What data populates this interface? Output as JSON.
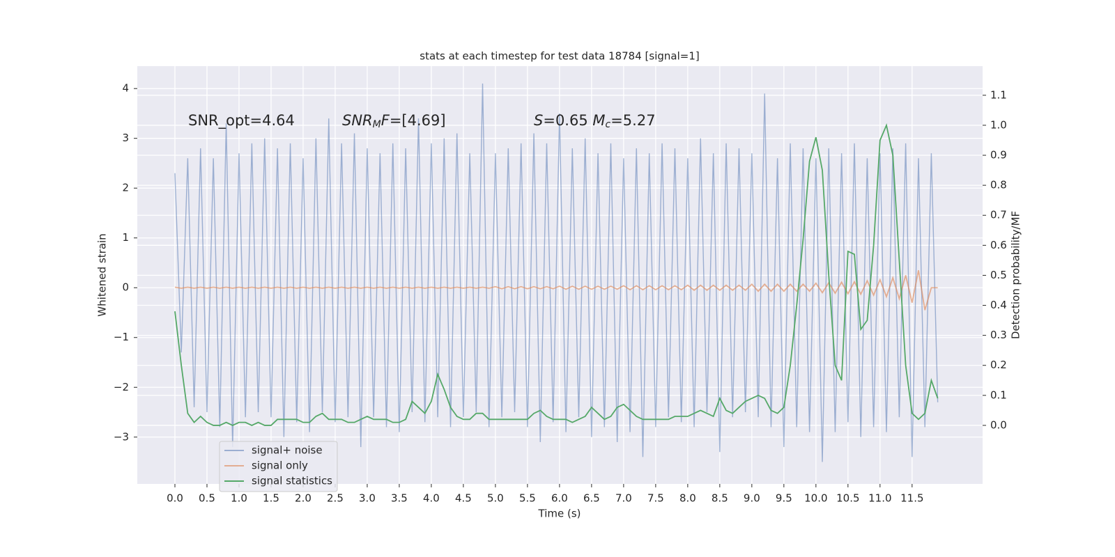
{
  "chart_data": {
    "type": "line",
    "title": "stats at each timestep for test data 18784 [signal=1]",
    "x_label": "Time (s)",
    "y_label": "Whitened strain",
    "y2_label": "Detection probability/MF",
    "annotations": [
      [
        {
          "text": "SNR_opt=4.64"
        }
      ],
      [
        {
          "text": "SNR",
          "italic": true
        },
        {
          "text": "M",
          "italic": true,
          "sub": true
        },
        {
          "text": "F",
          "italic": true
        },
        {
          "text": "=[4.69]"
        }
      ],
      [
        {
          "text": "S",
          "italic": true
        },
        {
          "text": "=0.65   "
        },
        {
          "text": "M",
          "italic": true
        },
        {
          "text": "c",
          "italic": true,
          "sub": true
        },
        {
          "text": "=5.27"
        }
      ]
    ],
    "xlim": [
      -0.587,
      12.6
    ],
    "ylim": [
      -3.94,
      4.45
    ],
    "y2lim": [
      -0.195,
      1.197
    ],
    "xticks": [
      {
        "value": 0,
        "label": "0.0"
      },
      0.5,
      {
        "value": 1,
        "label": "1.0"
      },
      1.5,
      {
        "value": 2,
        "label": "2.0"
      },
      2.5,
      {
        "value": 3,
        "label": "3.0"
      },
      3.5,
      {
        "value": 4,
        "label": "4.0"
      },
      4.5,
      {
        "value": 5,
        "label": "5.0"
      },
      5.5,
      {
        "value": 6,
        "label": "6.0"
      },
      6.5,
      {
        "value": 7,
        "label": "7.0"
      },
      7.5,
      {
        "value": 8,
        "label": "8.0"
      },
      8.5,
      {
        "value": 9,
        "label": "9.0"
      },
      9.5,
      {
        "value": 10,
        "label": "10.0"
      },
      10.5,
      {
        "value": 11,
        "label": "11.0"
      },
      11.5
    ],
    "yticks": [
      {
        "value": -3,
        "label": "−3"
      },
      {
        "value": -2,
        "label": "−2"
      },
      {
        "value": -1,
        "label": "−1"
      },
      0,
      1,
      2,
      3,
      4
    ],
    "y2ticks": [
      {
        "value": 0,
        "label": "0.0"
      },
      0.1,
      0.2,
      0.3,
      0.4,
      0.5,
      0.6,
      0.7,
      0.8,
      0.9,
      {
        "value": 1,
        "label": "1.0"
      },
      1.1
    ],
    "grid": true,
    "legend": "lower left",
    "x": [
      0,
      0.1,
      0.2,
      0.3,
      0.4,
      0.5,
      0.6,
      0.7,
      0.8,
      0.9,
      1,
      1.1,
      1.2,
      1.3,
      1.4,
      1.5,
      1.6,
      1.7,
      1.8,
      1.9,
      2,
      2.1,
      2.2,
      2.3,
      2.4,
      2.5,
      2.6,
      2.7,
      2.8,
      2.9,
      3,
      3.1,
      3.2,
      3.3,
      3.4,
      3.5,
      3.6,
      3.7,
      3.8,
      3.9,
      4,
      4.1,
      4.2,
      4.3,
      4.4,
      4.5,
      4.6,
      4.7,
      4.8,
      4.9,
      5,
      5.1,
      5.2,
      5.3,
      5.4,
      5.5,
      5.6,
      5.7,
      5.8,
      5.9,
      6,
      6.1,
      6.2,
      6.3,
      6.4,
      6.5,
      6.6,
      6.7,
      6.8,
      6.9,
      7,
      7.1,
      7.2,
      7.3,
      7.4,
      7.5,
      7.6,
      7.7,
      7.8,
      7.9,
      8,
      8.1,
      8.2,
      8.3,
      8.4,
      8.5,
      8.6,
      8.7,
      8.8,
      8.9,
      9,
      9.1,
      9.2,
      9.3,
      9.4,
      9.5,
      9.6,
      9.7,
      9.8,
      9.9,
      10,
      10.1,
      10.2,
      10.3,
      10.4,
      10.5,
      10.6,
      10.7,
      10.8,
      10.9,
      11,
      11.1,
      11.2,
      11.3,
      11.4,
      11.5,
      11.6,
      11.7,
      11.8,
      11.9
    ],
    "series": [
      {
        "name": "signal+ noise",
        "color": "#4c72b0",
        "opacity": 0.5,
        "values": [
          2.3,
          -1.3,
          2.6,
          -2.4,
          2.8,
          -2.5,
          2.6,
          -2.8,
          3.3,
          -3.2,
          2.7,
          -2.6,
          2.9,
          -2.5,
          3.0,
          -2.6,
          2.8,
          -3.0,
          2.9,
          -2.7,
          2.6,
          -2.9,
          3.0,
          -2.5,
          3.4,
          -2.7,
          2.9,
          -2.6,
          3.1,
          -3.2,
          2.8,
          -2.6,
          2.7,
          -2.8,
          2.9,
          -2.9,
          2.8,
          -2.5,
          3.4,
          -2.7,
          2.9,
          -2.6,
          3.0,
          -2.8,
          3.1,
          -2.6,
          2.7,
          -2.5,
          4.1,
          -2.8,
          2.7,
          -2.6,
          2.8,
          -2.5,
          2.9,
          -2.8,
          3.1,
          -3.1,
          2.9,
          -2.7,
          3.5,
          -2.9,
          2.8,
          -2.6,
          3.0,
          -3.0,
          2.7,
          -2.8,
          2.9,
          -3.1,
          2.6,
          -2.9,
          2.8,
          -3.4,
          2.7,
          -2.8,
          2.9,
          -2.6,
          2.8,
          -2.7,
          2.6,
          -2.8,
          3.0,
          -2.5,
          2.7,
          -3.3,
          2.9,
          -2.6,
          2.8,
          -2.5,
          2.7,
          -2.6,
          3.9,
          -2.8,
          2.6,
          -3.2,
          2.9,
          -2.8,
          2.8,
          -2.9,
          2.6,
          -3.5,
          2.8,
          -2.9,
          2.7,
          -2.7,
          2.9,
          -3.0,
          2.6,
          -2.8,
          2.7,
          -2.9,
          2.8,
          -2.6,
          2.9,
          -3.4,
          2.6,
          -2.8,
          2.7,
          -2.3
        ]
      },
      {
        "name": "signal only",
        "color": "#dd8452",
        "opacity": 0.6,
        "values": [
          0.01,
          -0.01,
          0.01,
          -0.01,
          0.01,
          -0.01,
          0.01,
          -0.01,
          0.01,
          -0.01,
          0.01,
          -0.01,
          0.01,
          -0.01,
          0.01,
          -0.01,
          0.01,
          -0.01,
          0.01,
          -0.01,
          0.01,
          -0.01,
          0.01,
          -0.01,
          0.01,
          -0.01,
          0.01,
          -0.01,
          0.01,
          -0.01,
          0.01,
          -0.01,
          0.01,
          -0.01,
          0.01,
          -0.01,
          0.01,
          -0.01,
          0.01,
          -0.01,
          0.01,
          -0.01,
          0.01,
          -0.01,
          0.01,
          -0.01,
          0.01,
          -0.01,
          0.01,
          -0.01,
          0.02,
          -0.02,
          0.02,
          -0.02,
          0.02,
          -0.02,
          0.02,
          -0.02,
          0.02,
          -0.02,
          0.03,
          -0.03,
          0.03,
          -0.03,
          0.03,
          -0.03,
          0.03,
          -0.03,
          0.03,
          -0.03,
          0.04,
          -0.04,
          0.04,
          -0.04,
          0.04,
          -0.04,
          0.04,
          -0.04,
          0.04,
          -0.04,
          0.05,
          -0.05,
          0.05,
          -0.05,
          0.05,
          -0.05,
          0.05,
          -0.05,
          0.05,
          -0.05,
          0.07,
          -0.07,
          0.07,
          -0.07,
          0.07,
          -0.07,
          0.07,
          -0.07,
          0.07,
          -0.07,
          0.09,
          -0.1,
          0.1,
          -0.11,
          0.11,
          -0.12,
          0.12,
          -0.13,
          0.14,
          -0.15,
          0.16,
          -0.18,
          0.2,
          -0.22,
          0.25,
          -0.3,
          0.35,
          -0.45,
          0,
          0
        ]
      },
      {
        "name": "signal statistics",
        "color": "#55a868",
        "opacity": 1,
        "axis": "y2",
        "values": [
          0.38,
          0.2,
          0.04,
          0.01,
          0.03,
          0.01,
          0,
          0,
          0.01,
          0,
          0.01,
          0.01,
          0,
          0.01,
          0,
          0,
          0.02,
          0.02,
          0.02,
          0.02,
          0.01,
          0.01,
          0.03,
          0.04,
          0.02,
          0.02,
          0.02,
          0.01,
          0.01,
          0.02,
          0.03,
          0.02,
          0.02,
          0.02,
          0.01,
          0.01,
          0.02,
          0.08,
          0.06,
          0.04,
          0.08,
          0.17,
          0.12,
          0.06,
          0.03,
          0.02,
          0.02,
          0.04,
          0.04,
          0.02,
          0.02,
          0.02,
          0.02,
          0.02,
          0.02,
          0.02,
          0.04,
          0.05,
          0.03,
          0.02,
          0.02,
          0.02,
          0.01,
          0.02,
          0.03,
          0.06,
          0.04,
          0.02,
          0.03,
          0.06,
          0.07,
          0.05,
          0.03,
          0.02,
          0.02,
          0.02,
          0.02,
          0.02,
          0.03,
          0.03,
          0.03,
          0.04,
          0.05,
          0.04,
          0.03,
          0.09,
          0.05,
          0.04,
          0.06,
          0.08,
          0.09,
          0.1,
          0.09,
          0.05,
          0.04,
          0.06,
          0.2,
          0.4,
          0.62,
          0.88,
          0.96,
          0.85,
          0.5,
          0.2,
          0.15,
          0.58,
          0.57,
          0.32,
          0.35,
          0.6,
          0.95,
          1.0,
          0.9,
          0.55,
          0.2,
          0.04,
          0.02,
          0.04,
          0.15,
          0.09
        ]
      }
    ]
  }
}
